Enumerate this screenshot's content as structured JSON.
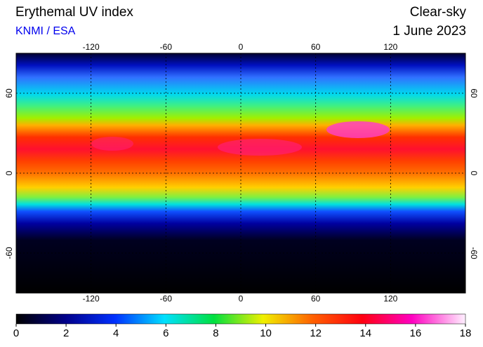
{
  "header": {
    "title": "Erythemal UV index",
    "source": "KNMI / ESA",
    "condition": "Clear-sky",
    "date": "1 June 2023"
  },
  "map": {
    "lon_ticks": [
      -120,
      -60,
      0,
      60,
      120
    ],
    "lat_ticks": [
      60,
      0,
      -60
    ]
  },
  "colorbar": {
    "ticks": [
      0,
      2,
      4,
      6,
      8,
      10,
      12,
      14,
      16,
      18
    ]
  }
}
